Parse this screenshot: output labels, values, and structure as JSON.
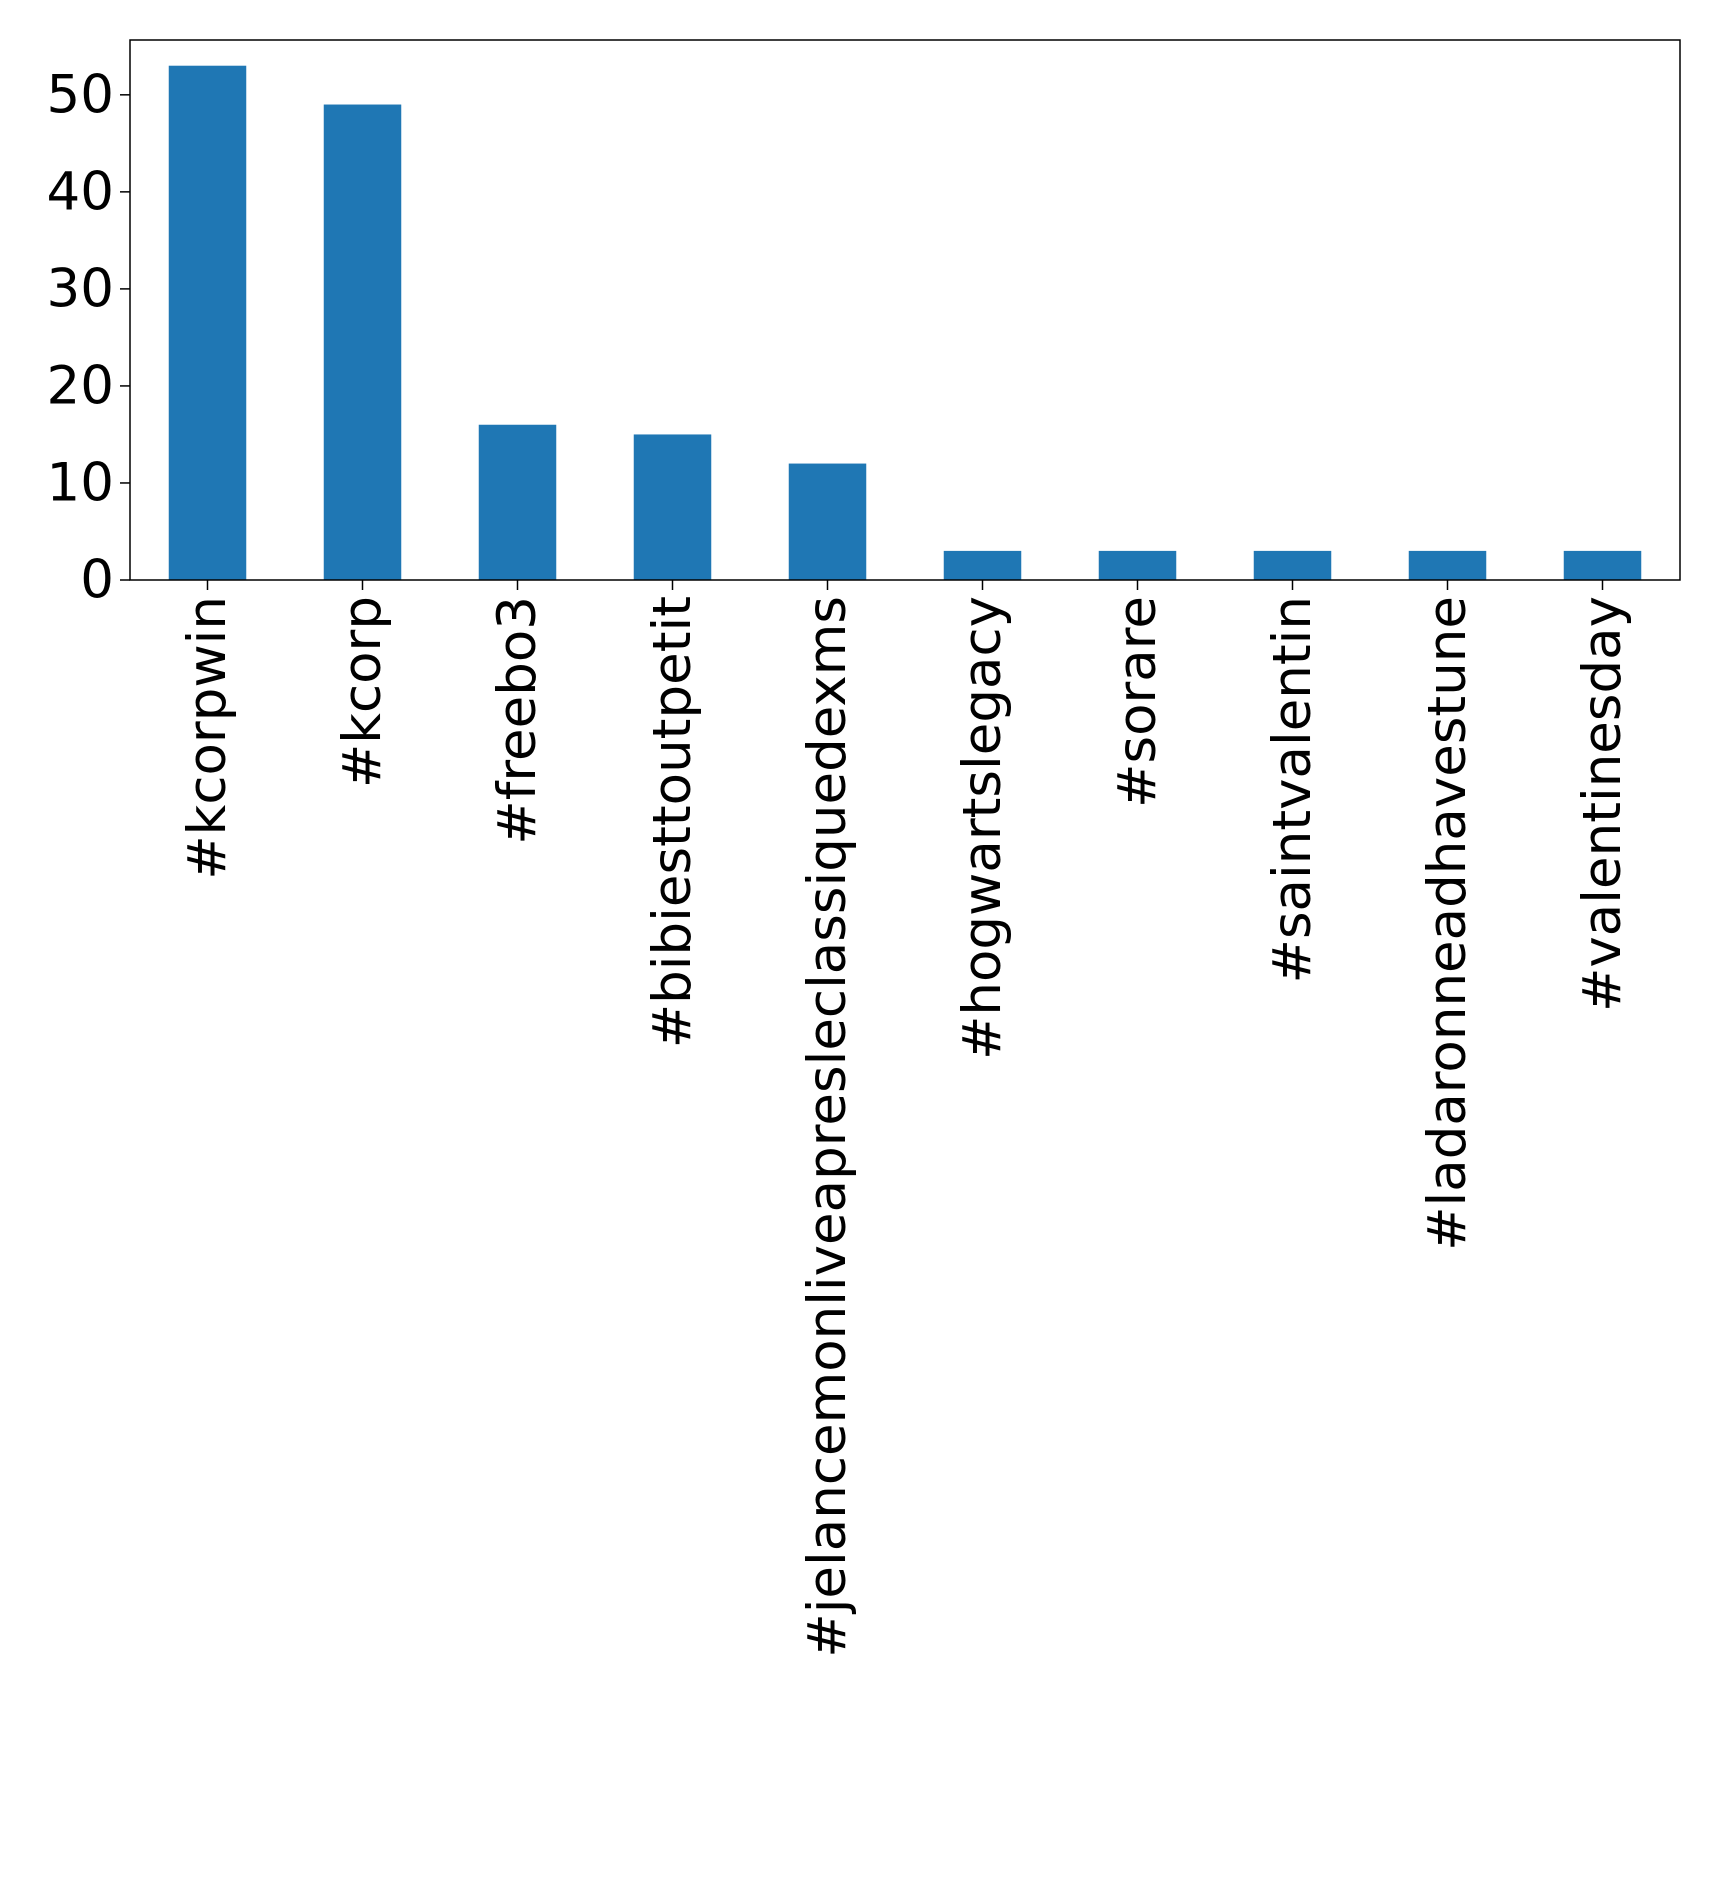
{
  "chart_data": {
    "type": "bar",
    "title": "",
    "xlabel": "",
    "ylabel": "",
    "categories": [
      "#kcorpwin",
      "#kcorp",
      "#freebo3",
      "#bibiesttoutpetit",
      "#jelancemonliveapresleclassiquedexms",
      "#hogwartslegacy",
      "#sorare",
      "#saintvalentin",
      "#ladaronneadhavestune",
      "#valentinesday"
    ],
    "values": [
      53,
      49,
      16,
      15,
      12,
      3,
      3,
      3,
      3,
      3
    ],
    "ylim": [
      0,
      55.65
    ],
    "yticks": [
      0,
      10,
      20,
      30,
      40,
      50
    ],
    "grid": false,
    "legend": "none",
    "colors": {
      "bar": "#1f77b4",
      "axis": "#000000"
    }
  }
}
